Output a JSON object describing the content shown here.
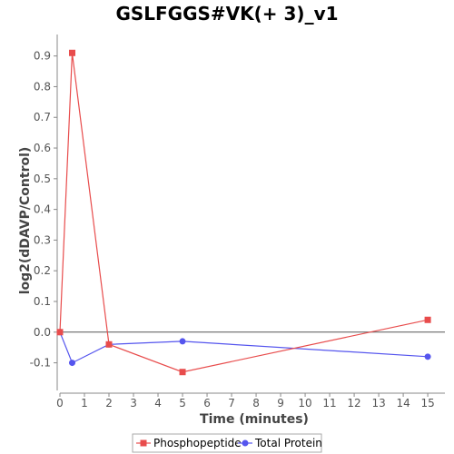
{
  "chart_data": {
    "type": "line",
    "title": "GSLFGGS#VK(+ 3)_v1",
    "xlabel": "Time (minutes)",
    "ylabel": "log2(dDAVP/Control)",
    "xlim": [
      0,
      15.7
    ],
    "ylim": [
      -0.19,
      0.97
    ],
    "x_ticks": [
      0,
      1,
      2,
      3,
      4,
      5,
      6,
      7,
      8,
      9,
      10,
      11,
      12,
      13,
      14,
      15
    ],
    "y_ticks": [
      -0.1,
      0.0,
      0.1,
      0.2,
      0.3,
      0.4,
      0.5,
      0.6,
      0.7,
      0.8,
      0.9
    ],
    "y_tick_labels": [
      "-0.1",
      "0.0",
      "0.1",
      "0.2",
      "0.3",
      "0.4",
      "0.5",
      "0.6",
      "0.7",
      "0.8",
      "0.9"
    ],
    "zero_line": true,
    "grid": false,
    "legend_position": "bottom",
    "series": [
      {
        "name": "Phosphopeptide",
        "color": "#e84c4c",
        "marker": "square",
        "x": [
          0,
          0.5,
          2,
          5,
          15
        ],
        "y": [
          0.0,
          0.91,
          -0.04,
          -0.13,
          0.04
        ]
      },
      {
        "name": "Total Protein",
        "color": "#5555ee",
        "marker": "circle",
        "x": [
          0,
          0.5,
          2,
          5,
          15
        ],
        "y": [
          0.0,
          -0.1,
          -0.04,
          -0.03,
          -0.08
        ]
      }
    ]
  }
}
